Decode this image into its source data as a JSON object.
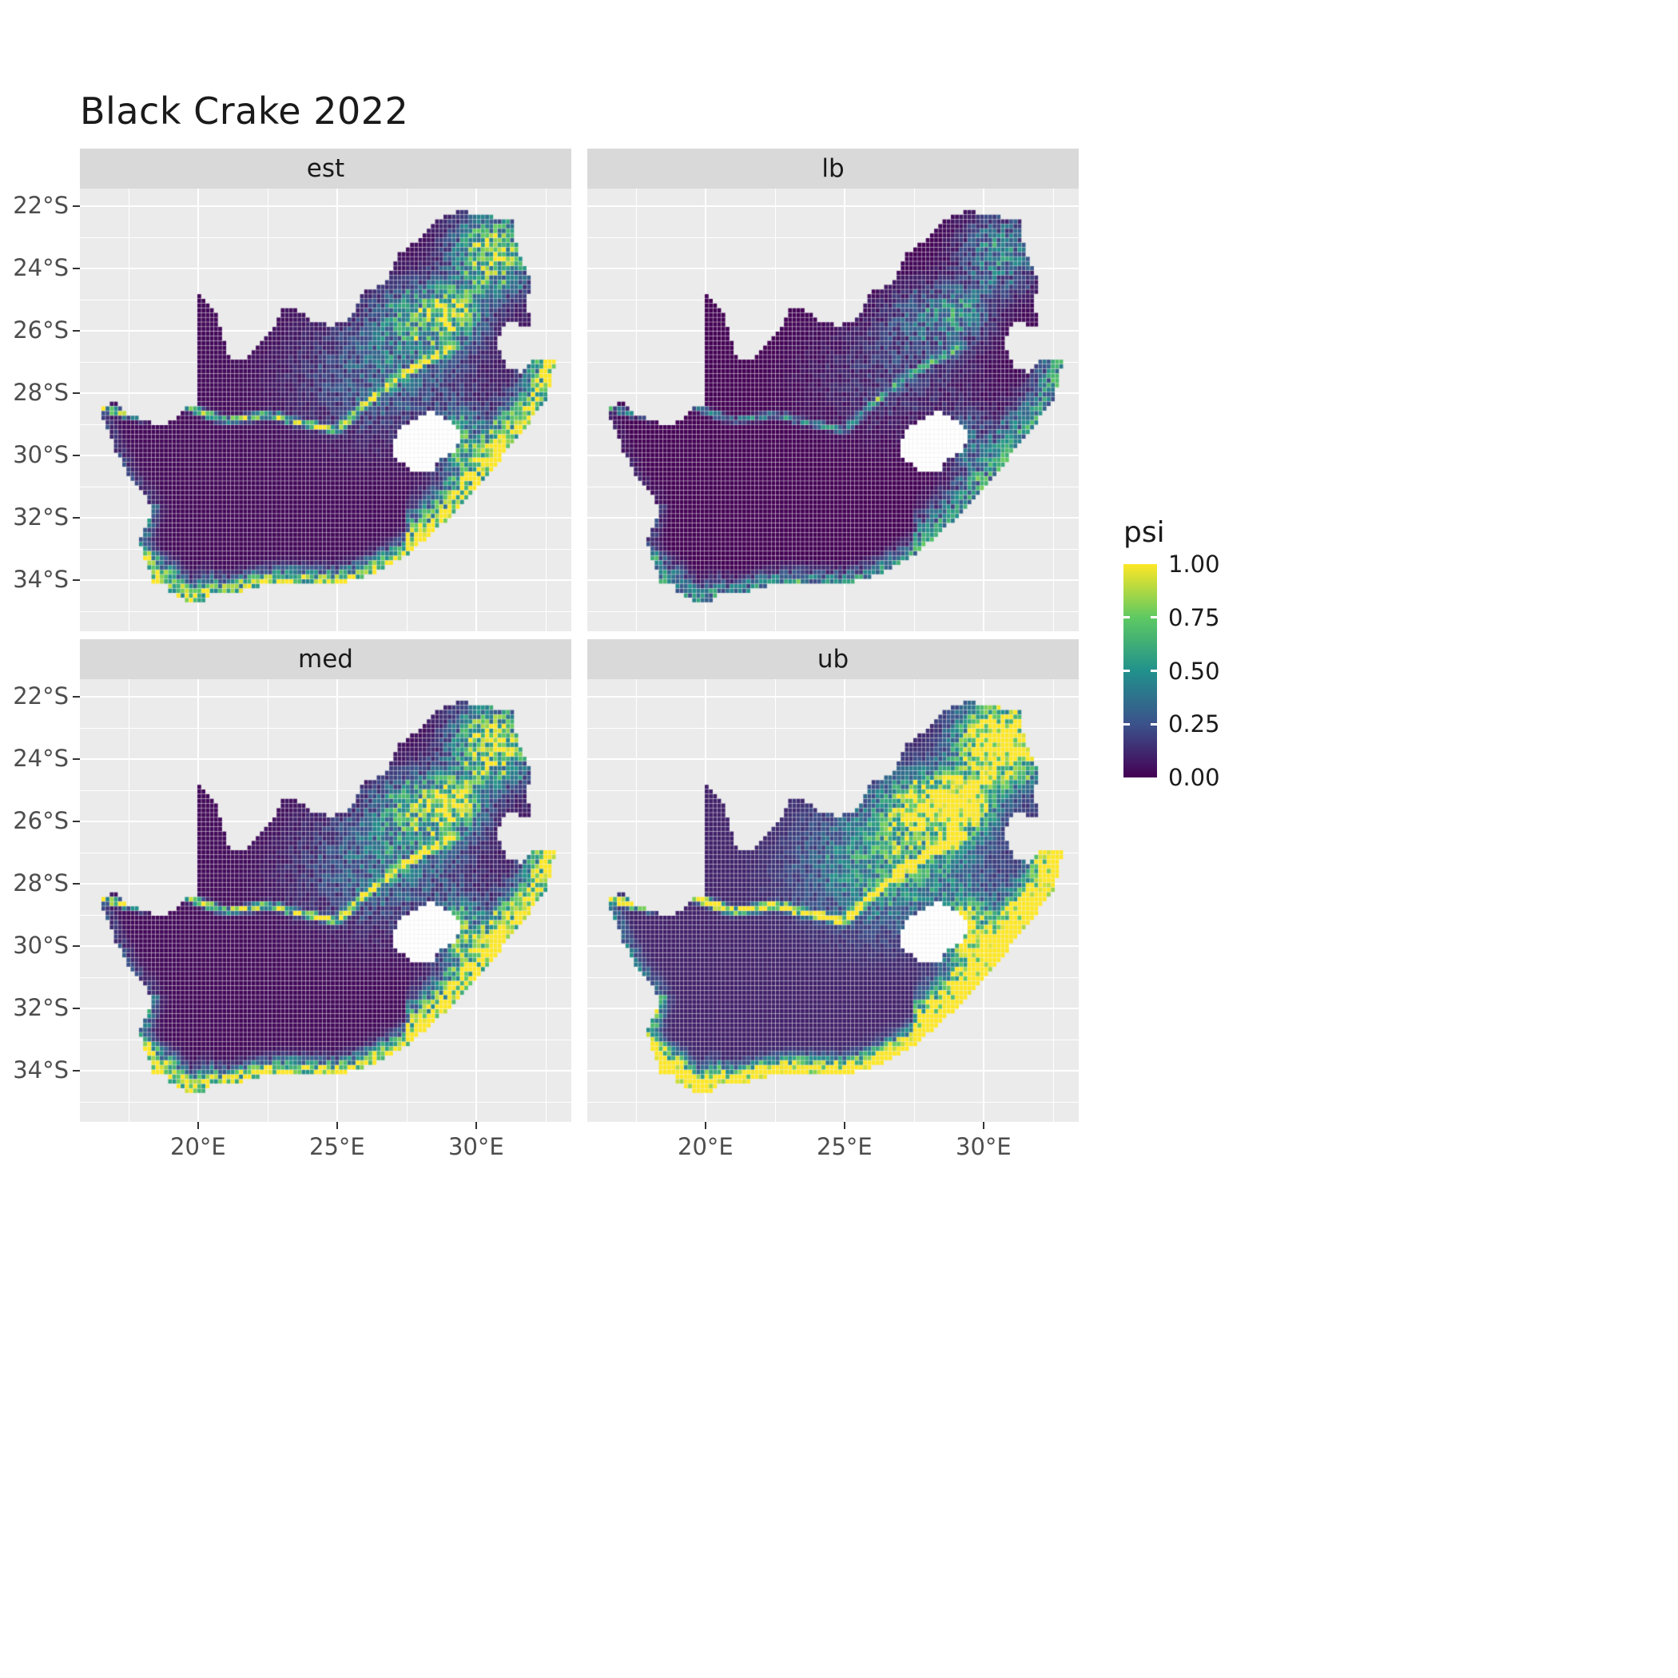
{
  "title": "Black Crake 2022",
  "chart_data": {
    "type": "heatmap",
    "subtype": "faceted-raster-map",
    "region": "South Africa",
    "title": "Black Crake 2022",
    "facets": [
      {
        "label": "est"
      },
      {
        "label": "lb"
      },
      {
        "label": "med"
      },
      {
        "label": "ub"
      }
    ],
    "x_ticks": [
      "20°E",
      "25°E",
      "30°E"
    ],
    "x_tick_lon": [
      20,
      25,
      30
    ],
    "y_ticks": [
      "22°S",
      "24°S",
      "26°S",
      "28°S",
      "30°S",
      "32°S",
      "34°S"
    ],
    "y_tick_lat": [
      -22,
      -24,
      -26,
      -28,
      -30,
      -32,
      -34
    ],
    "legend": {
      "title": "psi",
      "labels": [
        "1.00",
        "0.75",
        "0.50",
        "0.25",
        "0.00"
      ],
      "values": [
        1.0,
        0.75,
        0.5,
        0.25,
        0.0
      ]
    },
    "value_range": [
      0,
      1
    ],
    "colormap": "viridis",
    "extent": {
      "lon_min": 16.45,
      "lon_max": 32.9,
      "lat_min": -34.83,
      "lat_max": -22.13
    },
    "facet_adjust": [
      {
        "mult": 1.0,
        "add": 0.0
      },
      {
        "mult": 0.55,
        "add": -0.02
      },
      {
        "mult": 1.15,
        "add": 0.0
      },
      {
        "mult": 1.7,
        "add": 0.06
      }
    ],
    "colors": {
      "panel_bg": "#EBEBEB",
      "strip_bg": "#D9D9D9",
      "grid": "#FFFFFF",
      "axis_text": "#4D4D4D",
      "title_text": "#1A1A1A",
      "na_fill": "#FFFFFF",
      "viridis_stops": [
        "#440154",
        "#3B528B",
        "#21918C",
        "#5EC962",
        "#FDE725"
      ]
    }
  }
}
